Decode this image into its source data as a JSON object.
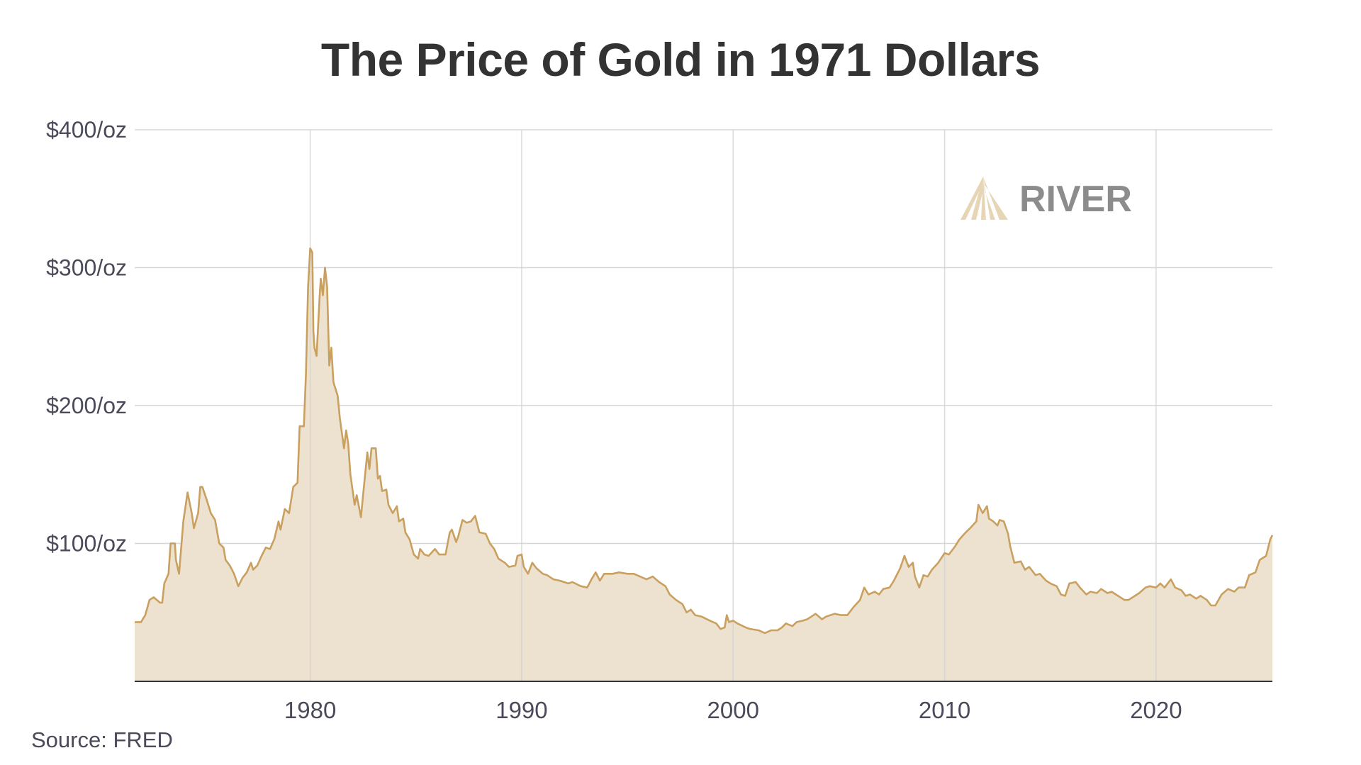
{
  "chart_data": {
    "type": "area",
    "title": "The Price of Gold in 1971 Dollars",
    "source": "Source: FRED",
    "watermark": "RIVER",
    "xlabel": "",
    "ylabel": "",
    "xlim": [
      1971.7,
      2025.5
    ],
    "ylim": [
      0,
      400
    ],
    "x_ticks": [
      1980,
      1990,
      2000,
      2010,
      2020
    ],
    "x_tick_labels": [
      "1980",
      "1990",
      "2000",
      "2010",
      "2020"
    ],
    "y_ticks": [
      100,
      200,
      300,
      400
    ],
    "y_tick_labels": [
      "$100/oz",
      "$200/oz",
      "$300/oz",
      "$400/oz"
    ],
    "grid": true,
    "colors": {
      "line": "#c9a05f",
      "fill": "#ede2cf",
      "grid": "#d6d6d6",
      "axis": "#333333"
    },
    "series": [
      {
        "points": [
          [
            1971.7,
            43
          ],
          [
            1972.0,
            43
          ],
          [
            1972.2,
            48
          ],
          [
            1972.4,
            59
          ],
          [
            1972.6,
            61
          ],
          [
            1972.9,
            57
          ],
          [
            1973.0,
            57
          ],
          [
            1973.1,
            71
          ],
          [
            1973.3,
            78
          ],
          [
            1973.4,
            100
          ],
          [
            1973.6,
            100
          ],
          [
            1973.65,
            88
          ],
          [
            1973.8,
            78
          ],
          [
            1974.0,
            116
          ],
          [
            1974.2,
            137
          ],
          [
            1974.4,
            122
          ],
          [
            1974.5,
            111
          ],
          [
            1974.7,
            122
          ],
          [
            1974.8,
            141
          ],
          [
            1974.9,
            141
          ],
          [
            1975.1,
            132
          ],
          [
            1975.3,
            122
          ],
          [
            1975.5,
            117
          ],
          [
            1975.7,
            100
          ],
          [
            1975.9,
            97
          ],
          [
            1976.0,
            88
          ],
          [
            1976.2,
            84
          ],
          [
            1976.4,
            78
          ],
          [
            1976.6,
            69
          ],
          [
            1976.8,
            75
          ],
          [
            1977.0,
            79
          ],
          [
            1977.2,
            86
          ],
          [
            1977.3,
            81
          ],
          [
            1977.5,
            84
          ],
          [
            1977.7,
            91
          ],
          [
            1977.9,
            97
          ],
          [
            1978.1,
            96
          ],
          [
            1978.3,
            103
          ],
          [
            1978.5,
            116
          ],
          [
            1978.6,
            110
          ],
          [
            1978.8,
            125
          ],
          [
            1979.0,
            122
          ],
          [
            1979.2,
            141
          ],
          [
            1979.4,
            144
          ],
          [
            1979.5,
            185
          ],
          [
            1979.7,
            185
          ],
          [
            1979.8,
            223
          ],
          [
            1979.9,
            286
          ],
          [
            1980.0,
            314
          ],
          [
            1980.1,
            311
          ],
          [
            1980.15,
            254
          ],
          [
            1980.2,
            242
          ],
          [
            1980.3,
            236
          ],
          [
            1980.45,
            280
          ],
          [
            1980.5,
            292
          ],
          [
            1980.6,
            280
          ],
          [
            1980.7,
            300
          ],
          [
            1980.8,
            286
          ],
          [
            1980.9,
            229
          ],
          [
            1981.0,
            242
          ],
          [
            1981.1,
            217
          ],
          [
            1981.3,
            207
          ],
          [
            1981.4,
            191
          ],
          [
            1981.6,
            169
          ],
          [
            1981.7,
            182
          ],
          [
            1981.8,
            172
          ],
          [
            1981.9,
            150
          ],
          [
            1982.1,
            128
          ],
          [
            1982.2,
            135
          ],
          [
            1982.4,
            119
          ],
          [
            1982.5,
            135
          ],
          [
            1982.7,
            166
          ],
          [
            1982.8,
            154
          ],
          [
            1982.9,
            169
          ],
          [
            1983.1,
            169
          ],
          [
            1983.2,
            147
          ],
          [
            1983.3,
            149
          ],
          [
            1983.4,
            138
          ],
          [
            1983.6,
            139
          ],
          [
            1983.7,
            128
          ],
          [
            1983.9,
            122
          ],
          [
            1984.1,
            127
          ],
          [
            1984.2,
            116
          ],
          [
            1984.4,
            118
          ],
          [
            1984.5,
            108
          ],
          [
            1984.7,
            103
          ],
          [
            1984.9,
            92
          ],
          [
            1985.1,
            89
          ],
          [
            1985.2,
            96
          ],
          [
            1985.4,
            92
          ],
          [
            1985.6,
            91
          ],
          [
            1985.9,
            96
          ],
          [
            1986.1,
            92
          ],
          [
            1986.4,
            92
          ],
          [
            1986.6,
            108
          ],
          [
            1986.7,
            110
          ],
          [
            1986.9,
            101
          ],
          [
            1987.0,
            105
          ],
          [
            1987.2,
            117
          ],
          [
            1987.4,
            115
          ],
          [
            1987.6,
            116
          ],
          [
            1987.8,
            120
          ],
          [
            1988.0,
            108
          ],
          [
            1988.3,
            107
          ],
          [
            1988.5,
            100
          ],
          [
            1988.7,
            96
          ],
          [
            1988.9,
            89
          ],
          [
            1989.2,
            86
          ],
          [
            1989.4,
            83
          ],
          [
            1989.7,
            84
          ],
          [
            1989.8,
            91
          ],
          [
            1990.0,
            92
          ],
          [
            1990.1,
            83
          ],
          [
            1990.3,
            78
          ],
          [
            1990.5,
            86
          ],
          [
            1990.7,
            82
          ],
          [
            1991.0,
            78
          ],
          [
            1991.2,
            77
          ],
          [
            1991.5,
            74
          ],
          [
            1991.8,
            73
          ],
          [
            1992.2,
            71
          ],
          [
            1992.4,
            72
          ],
          [
            1992.8,
            69
          ],
          [
            1993.1,
            68
          ],
          [
            1993.3,
            74
          ],
          [
            1993.5,
            79
          ],
          [
            1993.7,
            73
          ],
          [
            1993.9,
            78
          ],
          [
            1994.3,
            78
          ],
          [
            1994.6,
            79
          ],
          [
            1995.0,
            78
          ],
          [
            1995.3,
            78
          ],
          [
            1995.6,
            76
          ],
          [
            1995.9,
            74
          ],
          [
            1996.2,
            76
          ],
          [
            1996.5,
            72
          ],
          [
            1996.8,
            69
          ],
          [
            1997.0,
            63
          ],
          [
            1997.3,
            59
          ],
          [
            1997.6,
            56
          ],
          [
            1997.8,
            50
          ],
          [
            1998.0,
            52
          ],
          [
            1998.2,
            48
          ],
          [
            1998.5,
            47
          ],
          [
            1998.9,
            44
          ],
          [
            1999.2,
            42
          ],
          [
            1999.4,
            38
          ],
          [
            1999.6,
            39
          ],
          [
            1999.7,
            48
          ],
          [
            1999.8,
            43
          ],
          [
            2000.0,
            44
          ],
          [
            2000.2,
            42
          ],
          [
            2000.6,
            39
          ],
          [
            2000.8,
            38
          ],
          [
            2001.2,
            37
          ],
          [
            2001.5,
            35
          ],
          [
            2001.8,
            37
          ],
          [
            2002.1,
            37
          ],
          [
            2002.3,
            39
          ],
          [
            2002.5,
            42
          ],
          [
            2002.8,
            40
          ],
          [
            2003.0,
            43
          ],
          [
            2003.3,
            44
          ],
          [
            2003.5,
            45
          ],
          [
            2003.9,
            49
          ],
          [
            2004.2,
            45
          ],
          [
            2004.4,
            47
          ],
          [
            2004.8,
            49
          ],
          [
            2005.1,
            48
          ],
          [
            2005.4,
            48
          ],
          [
            2005.7,
            54
          ],
          [
            2006.0,
            59
          ],
          [
            2006.2,
            68
          ],
          [
            2006.4,
            63
          ],
          [
            2006.7,
            65
          ],
          [
            2006.9,
            63
          ],
          [
            2007.1,
            67
          ],
          [
            2007.4,
            68
          ],
          [
            2007.6,
            73
          ],
          [
            2007.9,
            82
          ],
          [
            2008.1,
            91
          ],
          [
            2008.3,
            83
          ],
          [
            2008.5,
            86
          ],
          [
            2008.6,
            76
          ],
          [
            2008.8,
            68
          ],
          [
            2009.0,
            77
          ],
          [
            2009.2,
            76
          ],
          [
            2009.4,
            81
          ],
          [
            2009.7,
            86
          ],
          [
            2010.0,
            93
          ],
          [
            2010.2,
            92
          ],
          [
            2010.5,
            98
          ],
          [
            2010.7,
            103
          ],
          [
            2011.0,
            108
          ],
          [
            2011.2,
            111
          ],
          [
            2011.5,
            116
          ],
          [
            2011.6,
            128
          ],
          [
            2011.8,
            122
          ],
          [
            2012.0,
            127
          ],
          [
            2012.1,
            118
          ],
          [
            2012.3,
            116
          ],
          [
            2012.5,
            113
          ],
          [
            2012.6,
            117
          ],
          [
            2012.8,
            116
          ],
          [
            2013.0,
            107
          ],
          [
            2013.1,
            98
          ],
          [
            2013.3,
            86
          ],
          [
            2013.6,
            87
          ],
          [
            2013.8,
            81
          ],
          [
            2014.0,
            83
          ],
          [
            2014.3,
            77
          ],
          [
            2014.5,
            78
          ],
          [
            2014.8,
            73
          ],
          [
            2015.0,
            71
          ],
          [
            2015.3,
            69
          ],
          [
            2015.5,
            63
          ],
          [
            2015.7,
            62
          ],
          [
            2015.9,
            71
          ],
          [
            2016.2,
            72
          ],
          [
            2016.4,
            68
          ],
          [
            2016.7,
            63
          ],
          [
            2016.9,
            65
          ],
          [
            2017.2,
            64
          ],
          [
            2017.4,
            67
          ],
          [
            2017.7,
            64
          ],
          [
            2017.9,
            65
          ],
          [
            2018.2,
            62
          ],
          [
            2018.5,
            59
          ],
          [
            2018.7,
            59
          ],
          [
            2019.0,
            62
          ],
          [
            2019.2,
            64
          ],
          [
            2019.5,
            68
          ],
          [
            2019.7,
            69
          ],
          [
            2020.0,
            68
          ],
          [
            2020.2,
            71
          ],
          [
            2020.4,
            68
          ],
          [
            2020.7,
            74
          ],
          [
            2020.9,
            68
          ],
          [
            2021.2,
            66
          ],
          [
            2021.4,
            62
          ],
          [
            2021.6,
            63
          ],
          [
            2021.9,
            60
          ],
          [
            2022.1,
            62
          ],
          [
            2022.4,
            59
          ],
          [
            2022.6,
            55
          ],
          [
            2022.8,
            55
          ],
          [
            2023.1,
            63
          ],
          [
            2023.4,
            67
          ],
          [
            2023.7,
            65
          ],
          [
            2023.9,
            68
          ],
          [
            2024.2,
            68
          ],
          [
            2024.4,
            77
          ],
          [
            2024.7,
            79
          ],
          [
            2024.9,
            88
          ],
          [
            2025.2,
            91
          ],
          [
            2025.4,
            103
          ],
          [
            2025.5,
            106
          ]
        ]
      }
    ]
  }
}
